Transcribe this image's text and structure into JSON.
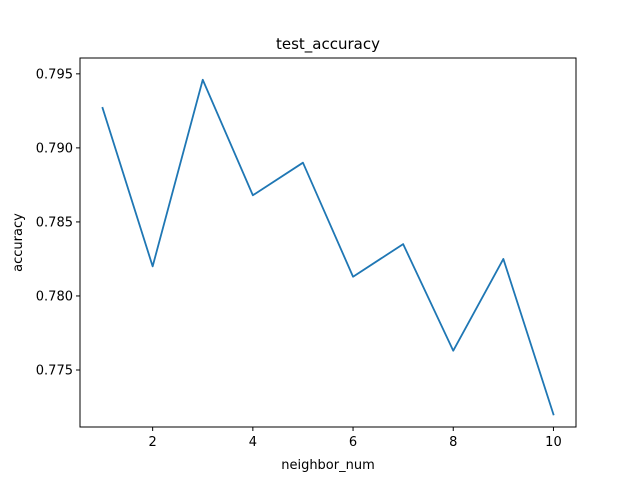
{
  "chart_data": {
    "type": "line",
    "title": "test_accuracy",
    "xlabel": "neighbor_num",
    "ylabel": "accuracy",
    "xlim": [
      0.55,
      10.45
    ],
    "ylim": [
      0.77115,
      0.79607
    ],
    "x_ticks": [
      2,
      4,
      6,
      8,
      10
    ],
    "x_tick_labels": [
      "2",
      "4",
      "6",
      "8",
      "10"
    ],
    "y_ticks": [
      0.775,
      0.78,
      0.785,
      0.79,
      0.795
    ],
    "y_tick_labels": [
      "0.775",
      "0.780",
      "0.785",
      "0.790",
      "0.795"
    ],
    "grid": false,
    "series": [
      {
        "color": "#1f77b4",
        "x": [
          1,
          2,
          3,
          4,
          5,
          6,
          7,
          8,
          9,
          10
        ],
        "y": [
          0.7927,
          0.782,
          0.7946,
          0.7868,
          0.789,
          0.7813,
          0.7835,
          0.7763,
          0.7825,
          0.772
        ]
      }
    ]
  }
}
